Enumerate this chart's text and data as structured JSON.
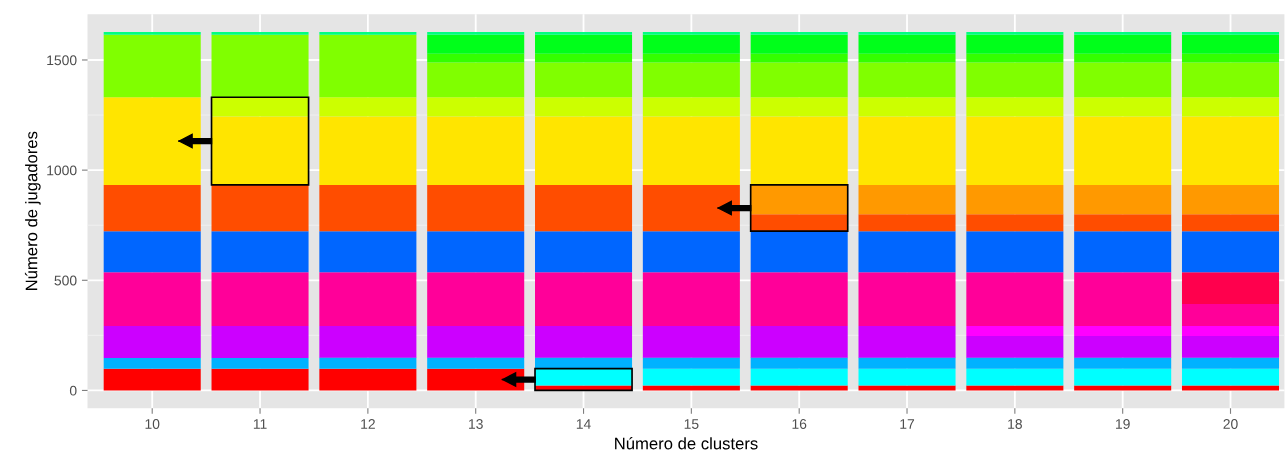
{
  "chart_data": {
    "type": "bar",
    "stacked": true,
    "xlabel": "Número de clusters",
    "ylabel": "Número de jugadores",
    "categories": [
      "10",
      "11",
      "12",
      "13",
      "14",
      "15",
      "16",
      "17",
      "18",
      "19",
      "20"
    ],
    "ylim": [
      -81,
      1708
    ],
    "yticks": [
      0,
      500,
      1000,
      1500
    ],
    "grid": true,
    "legend": false,
    "series": [
      {
        "color": "#ff0000",
        "values": [
          99,
          99,
          99,
          99,
          22,
          22,
          22,
          22,
          22,
          22,
          22
        ]
      },
      {
        "color": "#00ffff",
        "values": [
          0,
          0,
          0,
          0,
          77,
          77,
          77,
          77,
          77,
          77,
          77
        ]
      },
      {
        "color": "#00b2ff",
        "values": [
          48,
          48,
          48,
          48,
          48,
          48,
          48,
          48,
          48,
          48,
          48
        ]
      },
      {
        "color": "#3300ff",
        "values": [
          0,
          0,
          3,
          3,
          3,
          3,
          3,
          3,
          3,
          3,
          3
        ]
      },
      {
        "color": "#cc00ff",
        "values": [
          145,
          145,
          142,
          142,
          142,
          142,
          142,
          142,
          97,
          97,
          97
        ]
      },
      {
        "color": "#ff00ff",
        "values": [
          0,
          0,
          0,
          0,
          0,
          0,
          0,
          0,
          45,
          45,
          45
        ]
      },
      {
        "color": "#ff0099",
        "values": [
          245,
          245,
          245,
          245,
          245,
          245,
          245,
          245,
          245,
          245,
          100
        ]
      },
      {
        "color": "#ff004d",
        "values": [
          0,
          0,
          0,
          0,
          0,
          0,
          0,
          0,
          0,
          0,
          145
        ]
      },
      {
        "color": "#0066ff",
        "values": [
          186,
          186,
          186,
          186,
          186,
          186,
          186,
          186,
          186,
          186,
          186
        ]
      },
      {
        "color": "#ff4d00",
        "values": [
          210,
          210,
          210,
          210,
          210,
          210,
          77,
          77,
          77,
          77,
          77
        ]
      },
      {
        "color": "#ff9900",
        "values": [
          0,
          0,
          0,
          0,
          0,
          0,
          133,
          133,
          133,
          133,
          133
        ]
      },
      {
        "color": "#ffe500",
        "values": [
          398,
          311,
          311,
          311,
          311,
          311,
          311,
          311,
          311,
          311,
          311
        ]
      },
      {
        "color": "#ccff00",
        "values": [
          0,
          87,
          87,
          87,
          87,
          87,
          87,
          87,
          87,
          87,
          87
        ]
      },
      {
        "color": "#80ff00",
        "values": [
          284,
          284,
          284,
          158,
          158,
          158,
          158,
          158,
          158,
          158,
          158
        ]
      },
      {
        "color": "#33ff00",
        "values": [
          0,
          0,
          0,
          39,
          39,
          39,
          39,
          39,
          39,
          39,
          39
        ]
      },
      {
        "color": "#00ff1a",
        "values": [
          0,
          0,
          0,
          87,
          87,
          87,
          87,
          87,
          87,
          87,
          87
        ]
      },
      {
        "color": "#00ff80",
        "values": [
          12,
          12,
          12,
          12,
          12,
          12,
          12,
          12,
          12,
          12,
          12
        ]
      }
    ]
  }
}
